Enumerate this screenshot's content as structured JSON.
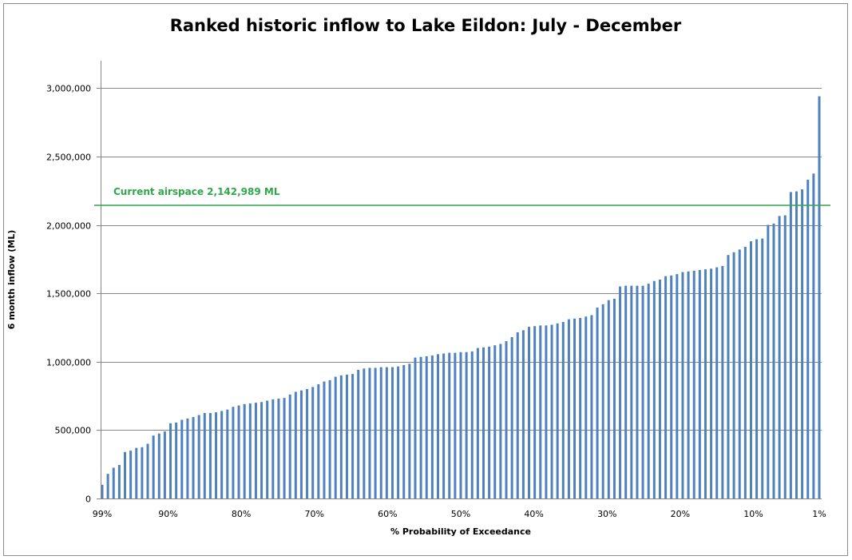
{
  "chart_data": {
    "type": "bar",
    "title": "Ranked historic inflow to Lake Eildon: July - December",
    "xlabel": "% Probability of Exceedance",
    "ylabel": "6 month inflow (ML)",
    "ylim": [
      0,
      3200000
    ],
    "y_ticks": [
      {
        "value": 0,
        "label": "0"
      },
      {
        "value": 500000,
        "label": "500,000"
      },
      {
        "value": 1000000,
        "label": "1,000,000"
      },
      {
        "value": 1500000,
        "label": "1,500,000"
      },
      {
        "value": 2000000,
        "label": "2,000,000"
      },
      {
        "value": 2500000,
        "label": "2,500,000"
      },
      {
        "value": 3000000,
        "label": "3,000,000"
      }
    ],
    "x_ticks": [
      {
        "value": 99,
        "label": "99%"
      },
      {
        "value": 90,
        "label": "90%"
      },
      {
        "value": 80,
        "label": "80%"
      },
      {
        "value": 70,
        "label": "70%"
      },
      {
        "value": 60,
        "label": "60%"
      },
      {
        "value": 50,
        "label": "50%"
      },
      {
        "value": 40,
        "label": "40%"
      },
      {
        "value": 30,
        "label": "30%"
      },
      {
        "value": 20,
        "label": "20%"
      },
      {
        "value": 10,
        "label": "10%"
      },
      {
        "value": 1,
        "label": "1%"
      }
    ],
    "grid": true,
    "bar_color": "#4F81BD",
    "reference_line": {
      "value": 2142989,
      "label": "Current airspace 2,142,989 ML",
      "color": "#2EA84A"
    },
    "values": [
      100000,
      180000,
      225000,
      245000,
      340000,
      350000,
      370000,
      375000,
      400000,
      460000,
      475000,
      490000,
      550000,
      555000,
      575000,
      585000,
      595000,
      610000,
      625000,
      625000,
      630000,
      640000,
      650000,
      670000,
      680000,
      690000,
      695000,
      700000,
      705000,
      715000,
      725000,
      730000,
      735000,
      760000,
      780000,
      790000,
      800000,
      815000,
      835000,
      855000,
      865000,
      890000,
      900000,
      905000,
      910000,
      940000,
      950000,
      955000,
      955000,
      960000,
      960000,
      960000,
      965000,
      975000,
      985000,
      1030000,
      1035000,
      1040000,
      1045000,
      1055000,
      1060000,
      1065000,
      1065000,
      1070000,
      1070000,
      1075000,
      1100000,
      1105000,
      1110000,
      1120000,
      1130000,
      1150000,
      1180000,
      1215000,
      1230000,
      1255000,
      1260000,
      1265000,
      1265000,
      1270000,
      1280000,
      1290000,
      1310000,
      1315000,
      1320000,
      1330000,
      1340000,
      1395000,
      1420000,
      1450000,
      1460000,
      1550000,
      1555000,
      1555000,
      1555000,
      1555000,
      1570000,
      1590000,
      1600000,
      1625000,
      1630000,
      1640000,
      1655000,
      1660000,
      1665000,
      1670000,
      1675000,
      1680000,
      1690000,
      1700000,
      1780000,
      1800000,
      1820000,
      1840000,
      1880000,
      1895000,
      1900000,
      2000000,
      2010000,
      2065000,
      2070000,
      2240000,
      2245000,
      2260000,
      2330000,
      2375000,
      2940000
    ]
  }
}
